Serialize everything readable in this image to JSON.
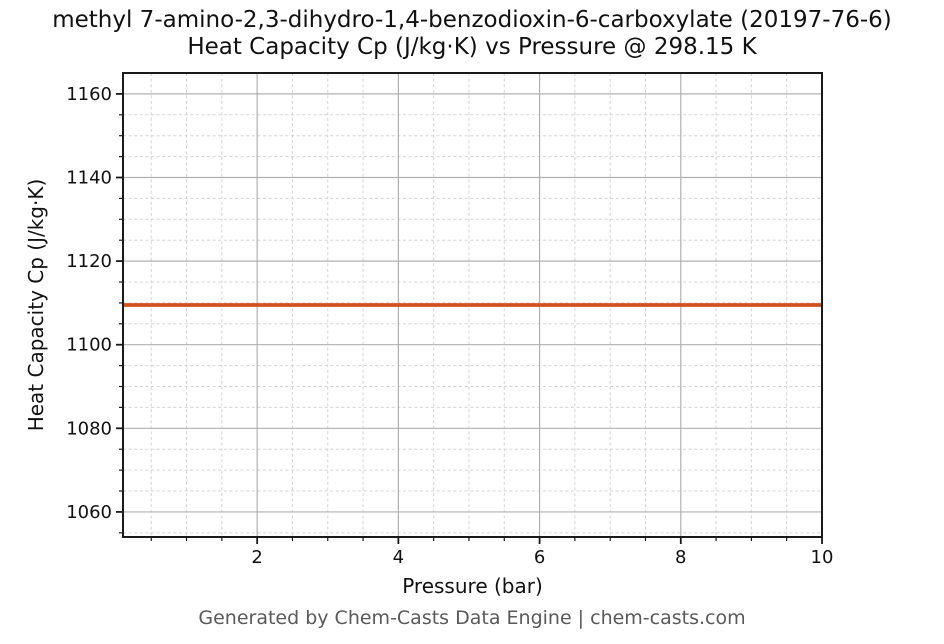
{
  "chart_data": {
    "type": "line",
    "title": "methyl 7-amino-2,3-dihydro-1,4-benzodioxin-6-carboxylate (20197-76-6)",
    "subtitle": "Heat Capacity Cp (J/kg·K) vs Pressure @ 298.15 K",
    "xlabel": "Pressure (bar)",
    "ylabel": "Heat Capacity Cp (J/kg·K)",
    "footer": "Generated by Chem-Casts Data Engine | chem-casts.com",
    "series": [
      {
        "name": "Heat Capacity Cp",
        "x": [
          0.1,
          1,
          2,
          3,
          4,
          5,
          6,
          7,
          8,
          9,
          10
        ],
        "y": [
          1109.5,
          1109.5,
          1109.5,
          1109.5,
          1109.5,
          1109.5,
          1109.5,
          1109.5,
          1109.5,
          1109.5,
          1109.5
        ],
        "color": "#d2521e"
      }
    ],
    "xlim": [
      0.1,
      10
    ],
    "ylim": [
      1054,
      1165
    ],
    "x_major_ticks": [
      2,
      4,
      6,
      8,
      10
    ],
    "y_major_ticks": [
      1060,
      1080,
      1100,
      1120,
      1140,
      1160
    ],
    "x_minor_step": 0.5,
    "y_minor_step": 5,
    "grid": {
      "major": true,
      "minor": true
    },
    "legend": "none",
    "colors": {
      "line": "#d2521e",
      "spine": "#1a1a1a",
      "major_grid": "#b0b0b0",
      "minor_grid": "#d3d3d3",
      "text": "#111111",
      "footer_text": "#595959",
      "background": "#ffffff"
    }
  }
}
